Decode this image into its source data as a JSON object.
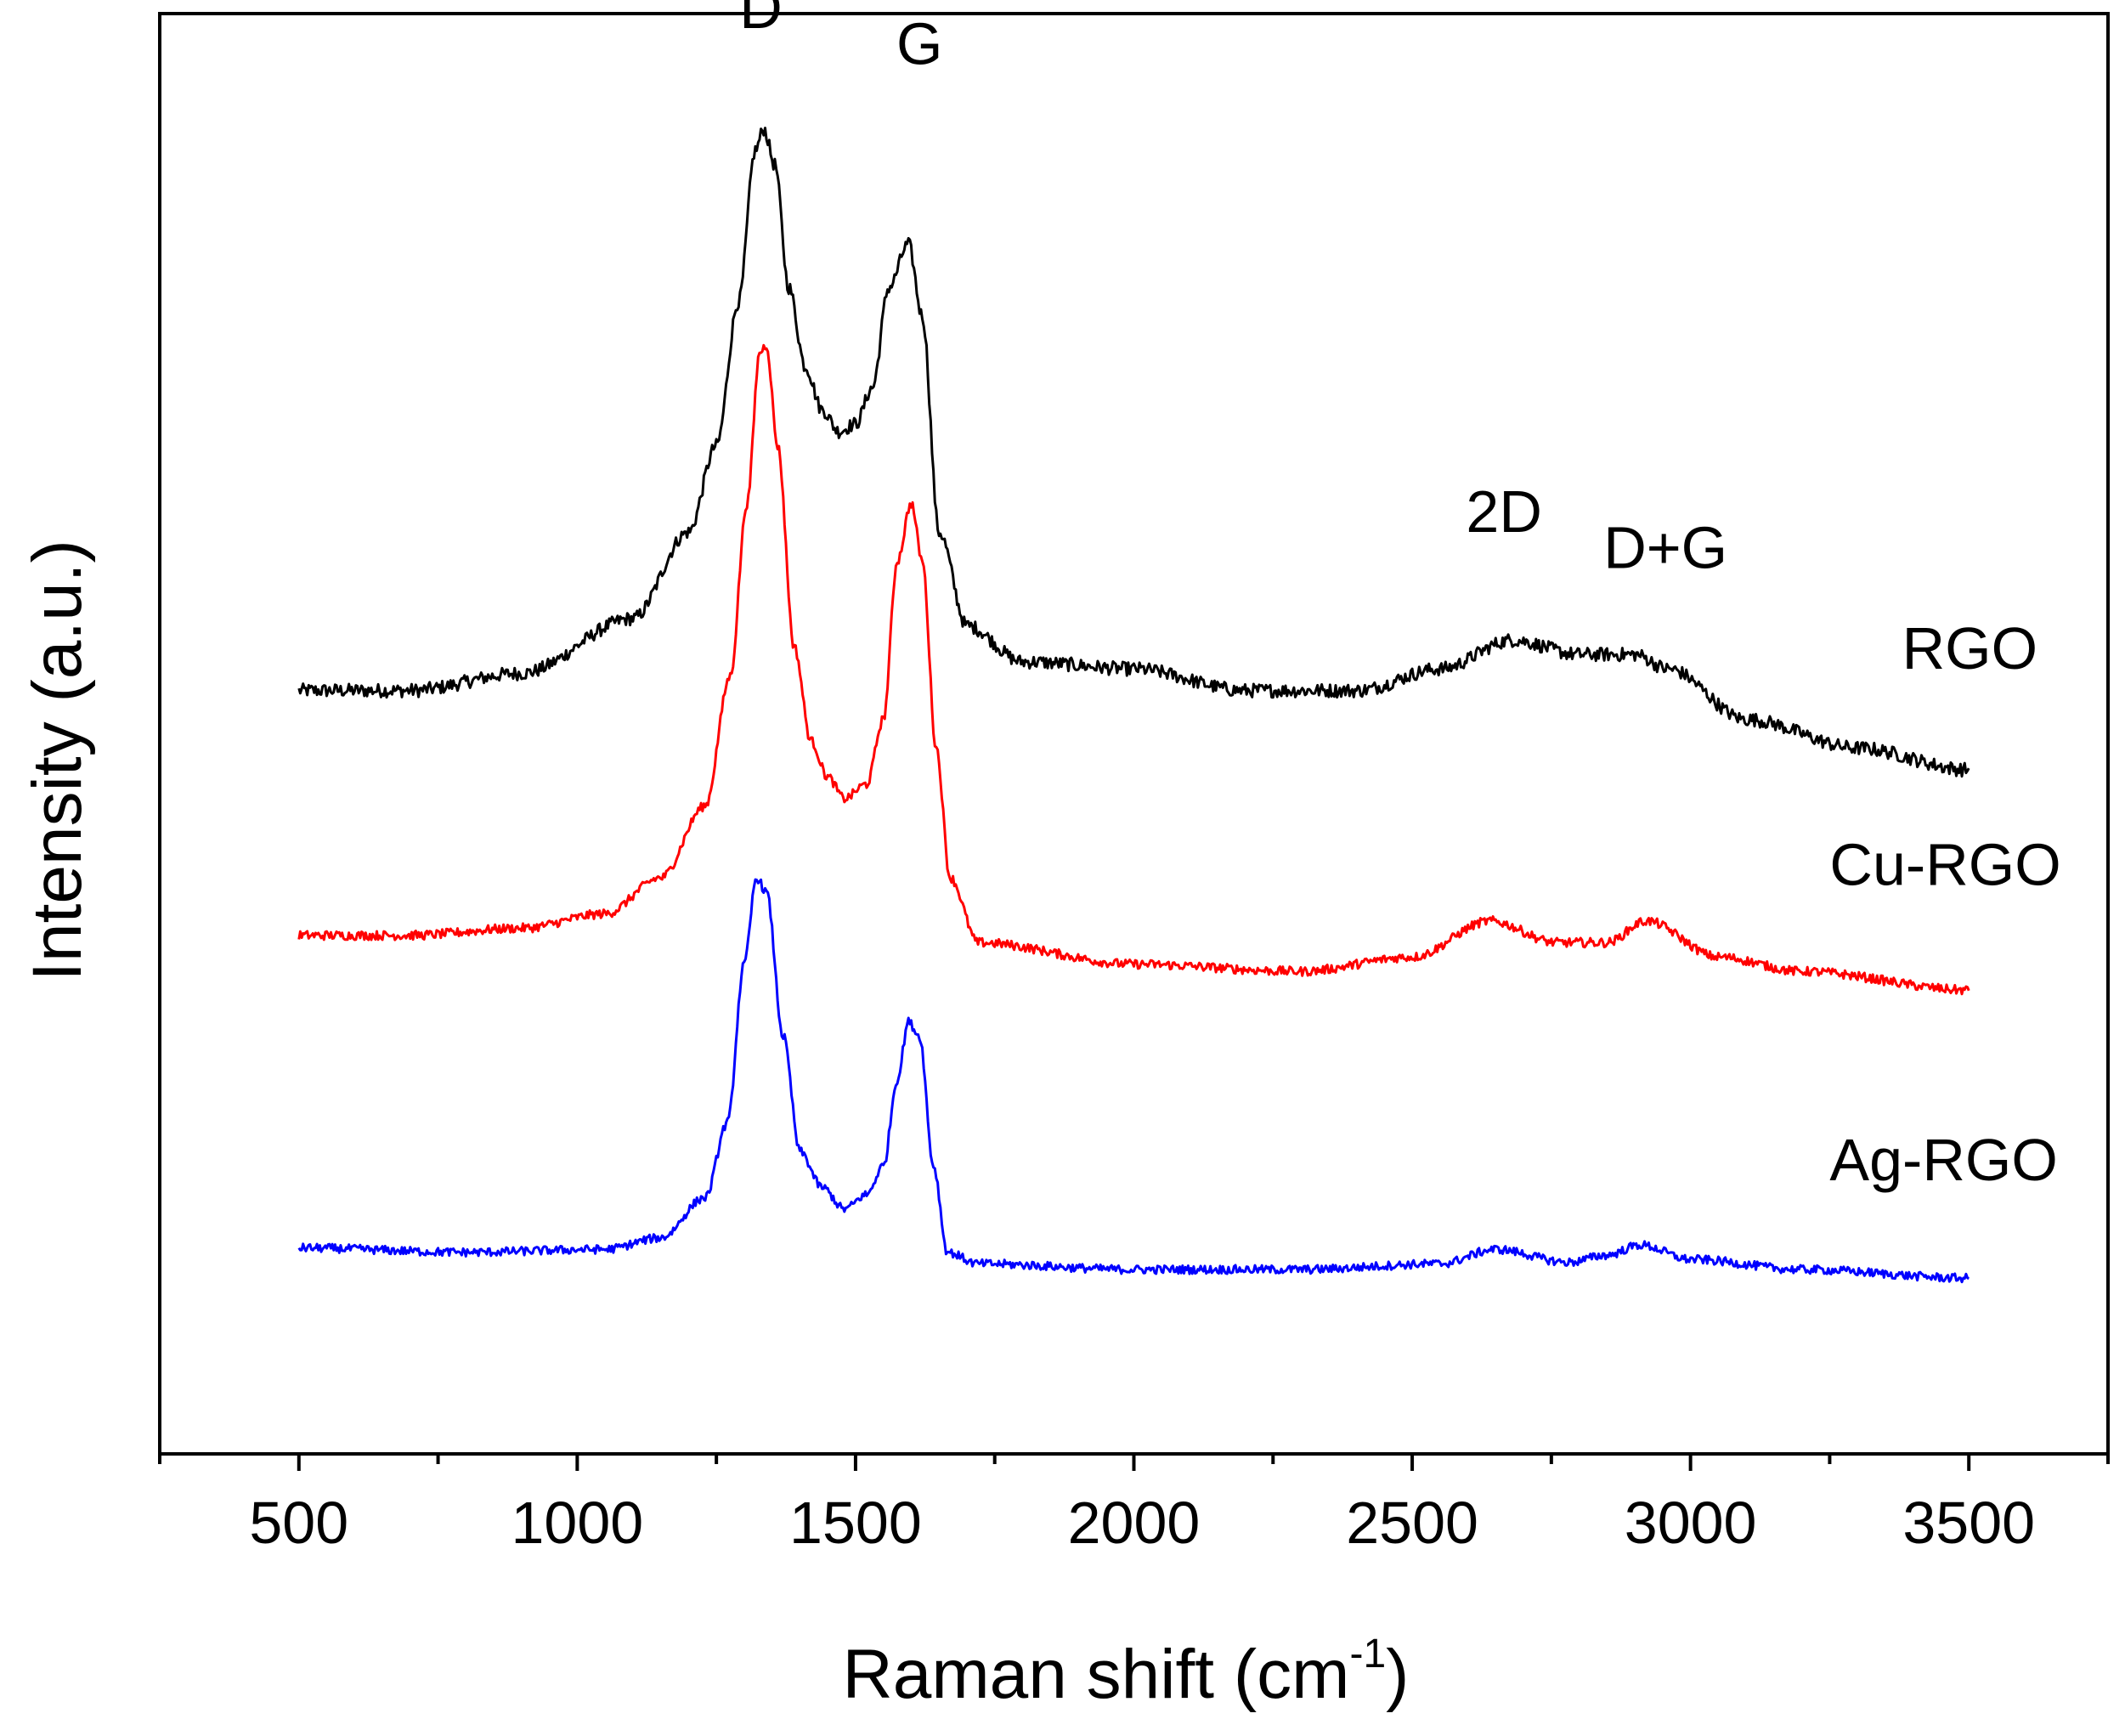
{
  "chart_data": {
    "type": "line",
    "title": "",
    "xlabel": "Raman shift (cm",
    "xlabel_sup": "-1",
    "xlabel_end": ")",
    "ylabel": "Intensity (a.u.)",
    "xlim": [
      250,
      3750
    ],
    "ylim": [
      0,
      1
    ],
    "xticks": [
      500,
      1000,
      1500,
      2000,
      2500,
      3000,
      3500
    ],
    "grid": false,
    "y_tick_labels_shown": false,
    "annotations": [
      {
        "text": "D",
        "x": 1330,
        "y": 0.99
      },
      {
        "text": "G",
        "x": 1615,
        "y": 0.965
      },
      {
        "text": "2D",
        "x": 2665,
        "y": 0.64
      },
      {
        "text": "D+G",
        "x": 2955,
        "y": 0.615
      }
    ],
    "series": [
      {
        "name": "RGO",
        "color": "#000000",
        "label_position": {
          "x": 3380,
          "y": 0.545
        },
        "noise": 0.0048,
        "points": [
          [
            500,
            0.53
          ],
          [
            700,
            0.53
          ],
          [
            900,
            0.542
          ],
          [
            1100,
            0.58
          ],
          [
            1200,
            0.64
          ],
          [
            1250,
            0.7
          ],
          [
            1290,
            0.8
          ],
          [
            1320,
            0.905
          ],
          [
            1335,
            0.92
          ],
          [
            1355,
            0.895
          ],
          [
            1380,
            0.81
          ],
          [
            1410,
            0.755
          ],
          [
            1440,
            0.725
          ],
          [
            1470,
            0.71
          ],
          [
            1500,
            0.715
          ],
          [
            1530,
            0.74
          ],
          [
            1560,
            0.81
          ],
          [
            1595,
            0.84
          ],
          [
            1620,
            0.79
          ],
          [
            1650,
            0.64
          ],
          [
            1700,
            0.575
          ],
          [
            1800,
            0.55
          ],
          [
            2000,
            0.545
          ],
          [
            2200,
            0.53
          ],
          [
            2400,
            0.53
          ],
          [
            2550,
            0.545
          ],
          [
            2680,
            0.565
          ],
          [
            2800,
            0.555
          ],
          [
            2900,
            0.555
          ],
          [
            2960,
            0.545
          ],
          [
            3100,
            0.51
          ],
          [
            3300,
            0.49
          ],
          [
            3500,
            0.475
          ]
        ]
      },
      {
        "name": "Cu-RGO",
        "color": "#ff0000",
        "label_position": {
          "x": 3250,
          "y": 0.395
        },
        "noise": 0.0032,
        "points": [
          [
            500,
            0.36
          ],
          [
            700,
            0.36
          ],
          [
            900,
            0.365
          ],
          [
            1050,
            0.375
          ],
          [
            1150,
            0.4
          ],
          [
            1230,
            0.45
          ],
          [
            1275,
            0.54
          ],
          [
            1305,
            0.66
          ],
          [
            1328,
            0.765
          ],
          [
            1340,
            0.77
          ],
          [
            1360,
            0.7
          ],
          [
            1390,
            0.56
          ],
          [
            1420,
            0.495
          ],
          [
            1450,
            0.47
          ],
          [
            1480,
            0.455
          ],
          [
            1520,
            0.465
          ],
          [
            1550,
            0.51
          ],
          [
            1575,
            0.62
          ],
          [
            1600,
            0.66
          ],
          [
            1620,
            0.62
          ],
          [
            1645,
            0.49
          ],
          [
            1670,
            0.4
          ],
          [
            1720,
            0.355
          ],
          [
            2000,
            0.34
          ],
          [
            2300,
            0.335
          ],
          [
            2500,
            0.345
          ],
          [
            2640,
            0.37
          ],
          [
            2760,
            0.355
          ],
          [
            2850,
            0.355
          ],
          [
            2920,
            0.37
          ],
          [
            3050,
            0.345
          ],
          [
            3200,
            0.335
          ],
          [
            3500,
            0.322
          ]
        ]
      },
      {
        "name": "Ag-RGO",
        "color": "#0000ff",
        "label_position": {
          "x": 3250,
          "y": 0.19
        },
        "noise": 0.003,
        "points": [
          [
            500,
            0.143
          ],
          [
            800,
            0.14
          ],
          [
            1050,
            0.142
          ],
          [
            1150,
            0.15
          ],
          [
            1230,
            0.178
          ],
          [
            1270,
            0.23
          ],
          [
            1300,
            0.34
          ],
          [
            1322,
            0.4
          ],
          [
            1340,
            0.39
          ],
          [
            1370,
            0.29
          ],
          [
            1400,
            0.21
          ],
          [
            1440,
            0.185
          ],
          [
            1480,
            0.17
          ],
          [
            1520,
            0.18
          ],
          [
            1550,
            0.2
          ],
          [
            1575,
            0.26
          ],
          [
            1595,
            0.3
          ],
          [
            1615,
            0.29
          ],
          [
            1640,
            0.2
          ],
          [
            1665,
            0.14
          ],
          [
            1720,
            0.132
          ],
          [
            2000,
            0.128
          ],
          [
            2300,
            0.128
          ],
          [
            2550,
            0.132
          ],
          [
            2650,
            0.142
          ],
          [
            2780,
            0.133
          ],
          [
            2850,
            0.138
          ],
          [
            2910,
            0.145
          ],
          [
            3000,
            0.135
          ],
          [
            3200,
            0.128
          ],
          [
            3500,
            0.122
          ]
        ]
      }
    ]
  }
}
